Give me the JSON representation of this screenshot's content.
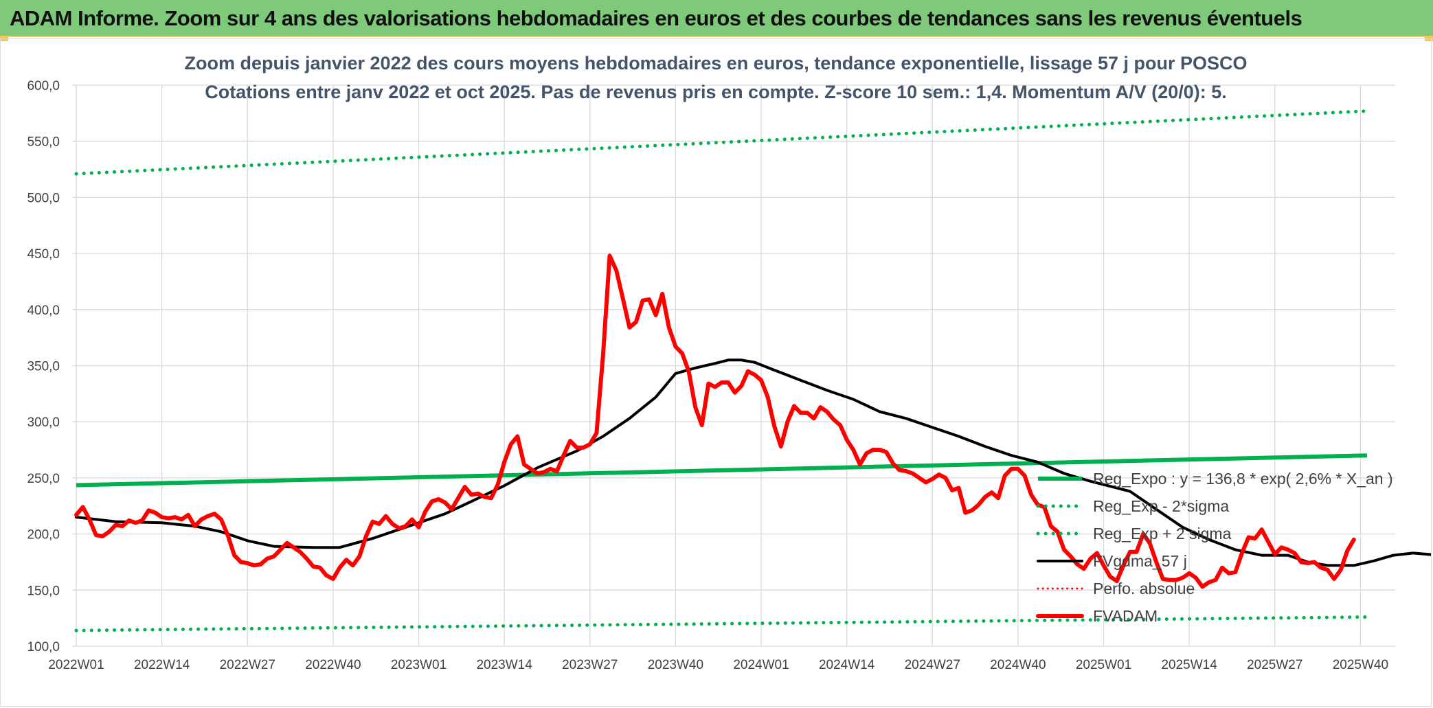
{
  "header": {
    "title": "ADAM Informe. Zoom sur 4 ans des valorisations hebdomadaires en euros et des courbes de tendances sans les revenus éventuels"
  },
  "colors": {
    "header_bg": "#7fc97a",
    "reg_expo": "#00b050",
    "fvadam": "#ff0000",
    "fvgdma": "#000000",
    "grid": "#d9d9d9",
    "title_text": "#44546a"
  },
  "chart_data": {
    "type": "line",
    "title": [
      "Zoom depuis janvier 2022 des cours moyens hebdomadaires en euros, tendance exponentielle, lissage 57 j pour POSCO",
      "Cotations entre janv 2022 et oct 2025. Pas de revenus pris en compte. Z-score 10 sem.: 1,4. Momentum A/V (20/0): 5."
    ],
    "ylim": [
      100,
      600
    ],
    "yticks": [
      "100,0",
      "150,0",
      "200,0",
      "250,0",
      "300,0",
      "350,0",
      "400,0",
      "450,0",
      "500,0",
      "550,0",
      "600,0"
    ],
    "xlabels": [
      "2022W01",
      "2022W14",
      "2022W27",
      "2022W40",
      "2023W01",
      "2023W14",
      "2023W27",
      "2023W40",
      "2024W01",
      "2024W14",
      "2024W27",
      "2024W40",
      "2025W01",
      "2025W14",
      "2025W27",
      "2025W40"
    ],
    "x_unit": "week index (0 = 2022W01, 13 weeks per label)",
    "series": [
      {
        "name": "Reg_Expo : y = 136,8 * exp( 2,6% *  X_an )",
        "style": "solid-thick",
        "points": [
          [
            0,
            243.5
          ],
          [
            196,
            270
          ]
        ]
      },
      {
        "name": "Reg_Exp - 2*sigma",
        "style": "dotted",
        "points": [
          [
            0,
            114
          ],
          [
            196,
            126
          ]
        ]
      },
      {
        "name": "Reg_Exp + 2 sigma",
        "style": "dotted",
        "points": [
          [
            0,
            521
          ],
          [
            196,
            577
          ]
        ]
      },
      {
        "name": "FVgdma_57 j",
        "style": "solid",
        "points": [
          [
            0,
            215
          ],
          [
            6,
            211
          ],
          [
            13,
            210
          ],
          [
            18,
            207
          ],
          [
            22,
            202
          ],
          [
            26,
            194
          ],
          [
            30,
            189
          ],
          [
            36,
            188
          ],
          [
            40,
            188
          ],
          [
            45,
            196
          ],
          [
            50,
            206
          ],
          [
            56,
            218
          ],
          [
            60,
            229
          ],
          [
            65,
            243
          ],
          [
            70,
            259
          ],
          [
            76,
            274
          ],
          [
            80,
            287
          ],
          [
            84,
            303
          ],
          [
            88,
            322
          ],
          [
            91,
            343
          ],
          [
            94,
            348
          ],
          [
            97,
            352
          ],
          [
            99,
            355
          ],
          [
            101,
            355
          ],
          [
            103,
            353
          ],
          [
            106,
            346
          ],
          [
            110,
            337
          ],
          [
            114,
            328
          ],
          [
            118,
            320
          ],
          [
            122,
            309
          ],
          [
            126,
            303
          ],
          [
            130,
            295
          ],
          [
            134,
            287
          ],
          [
            138,
            278
          ],
          [
            142,
            270
          ],
          [
            146,
            264
          ],
          [
            150,
            254
          ],
          [
            154,
            247
          ],
          [
            158,
            241
          ],
          [
            160,
            238
          ],
          [
            164,
            222
          ],
          [
            168,
            206
          ],
          [
            172,
            195
          ],
          [
            176,
            186
          ],
          [
            180,
            181
          ],
          [
            184,
            181
          ],
          [
            187,
            175
          ],
          [
            190,
            172
          ],
          [
            194,
            172
          ],
          [
            197,
            176
          ],
          [
            200,
            181
          ],
          [
            203,
            183
          ],
          [
            207,
            181
          ],
          [
            212,
            181
          ],
          [
            216,
            182
          ],
          [
            220,
            186
          ]
        ]
      },
      {
        "name": "Perfo. absolue",
        "style": "dotted",
        "points": []
      },
      {
        "name": "FVADAM",
        "style": "solid-thick",
        "points": [
          [
            0,
            217
          ],
          [
            1,
            224
          ],
          [
            2,
            213
          ],
          [
            3,
            199
          ],
          [
            4,
            198
          ],
          [
            5,
            202
          ],
          [
            6,
            208
          ],
          [
            7,
            207
          ],
          [
            8,
            212
          ],
          [
            9,
            210
          ],
          [
            10,
            212
          ],
          [
            11,
            221
          ],
          [
            12,
            219
          ],
          [
            13,
            215
          ],
          [
            14,
            214
          ],
          [
            15,
            215
          ],
          [
            16,
            213
          ],
          [
            17,
            217
          ],
          [
            18,
            207
          ],
          [
            19,
            213
          ],
          [
            20,
            216
          ],
          [
            21,
            218
          ],
          [
            22,
            213
          ],
          [
            23,
            199
          ],
          [
            24,
            181
          ],
          [
            25,
            175
          ],
          [
            26,
            174
          ],
          [
            27,
            172
          ],
          [
            28,
            173
          ],
          [
            29,
            178
          ],
          [
            30,
            180
          ],
          [
            31,
            186
          ],
          [
            32,
            192
          ],
          [
            33,
            188
          ],
          [
            34,
            184
          ],
          [
            35,
            178
          ],
          [
            36,
            171
          ],
          [
            37,
            170
          ],
          [
            38,
            163
          ],
          [
            39,
            160
          ],
          [
            40,
            170
          ],
          [
            41,
            177
          ],
          [
            42,
            172
          ],
          [
            43,
            180
          ],
          [
            44,
            198
          ],
          [
            45,
            211
          ],
          [
            46,
            209
          ],
          [
            47,
            216
          ],
          [
            48,
            209
          ],
          [
            49,
            205
          ],
          [
            50,
            207
          ],
          [
            51,
            213
          ],
          [
            52,
            206
          ],
          [
            53,
            220
          ],
          [
            54,
            229
          ],
          [
            55,
            231
          ],
          [
            56,
            228
          ],
          [
            57,
            222
          ],
          [
            58,
            232
          ],
          [
            59,
            242
          ],
          [
            60,
            235
          ],
          [
            61,
            236
          ],
          [
            62,
            233
          ],
          [
            63,
            232
          ],
          [
            64,
            244
          ],
          [
            65,
            264
          ],
          [
            66,
            280
          ],
          [
            67,
            287
          ],
          [
            68,
            262
          ],
          [
            69,
            258
          ],
          [
            70,
            254
          ],
          [
            71,
            255
          ],
          [
            72,
            258
          ],
          [
            73,
            256
          ],
          [
            74,
            270
          ],
          [
            75,
            283
          ],
          [
            76,
            277
          ],
          [
            77,
            277
          ],
          [
            78,
            280
          ],
          [
            79,
            290
          ],
          [
            80,
            360
          ],
          [
            81,
            448
          ],
          [
            82,
            435
          ],
          [
            83,
            410
          ],
          [
            84,
            384
          ],
          [
            85,
            389
          ],
          [
            86,
            408
          ],
          [
            87,
            409
          ],
          [
            88,
            395
          ],
          [
            89,
            414
          ],
          [
            90,
            384
          ],
          [
            91,
            367
          ],
          [
            92,
            361
          ],
          [
            93,
            345
          ],
          [
            94,
            313
          ],
          [
            95,
            297
          ],
          [
            96,
            334
          ],
          [
            97,
            331
          ],
          [
            98,
            335
          ],
          [
            99,
            335
          ],
          [
            100,
            326
          ],
          [
            101,
            332
          ],
          [
            102,
            345
          ],
          [
            103,
            342
          ],
          [
            104,
            337
          ],
          [
            105,
            322
          ],
          [
            106,
            296
          ],
          [
            107,
            278
          ],
          [
            108,
            300
          ],
          [
            109,
            314
          ],
          [
            110,
            308
          ],
          [
            111,
            308
          ],
          [
            112,
            303
          ],
          [
            113,
            313
          ],
          [
            114,
            309
          ],
          [
            115,
            302
          ],
          [
            116,
            297
          ],
          [
            117,
            284
          ],
          [
            118,
            275
          ],
          [
            119,
            262
          ],
          [
            120,
            272
          ],
          [
            121,
            275
          ],
          [
            122,
            275
          ],
          [
            123,
            273
          ],
          [
            124,
            263
          ],
          [
            125,
            257
          ],
          [
            126,
            256
          ],
          [
            127,
            254
          ],
          [
            128,
            250
          ],
          [
            129,
            246
          ],
          [
            130,
            249
          ],
          [
            131,
            253
          ],
          [
            132,
            250
          ],
          [
            133,
            239
          ],
          [
            134,
            241
          ],
          [
            135,
            219
          ],
          [
            136,
            221
          ],
          [
            137,
            226
          ],
          [
            138,
            233
          ],
          [
            139,
            237
          ],
          [
            140,
            232
          ],
          [
            141,
            252
          ],
          [
            142,
            258
          ],
          [
            143,
            258
          ],
          [
            144,
            252
          ],
          [
            145,
            235
          ],
          [
            146,
            226
          ],
          [
            147,
            224
          ],
          [
            148,
            207
          ],
          [
            149,
            202
          ],
          [
            150,
            186
          ],
          [
            151,
            180
          ],
          [
            152,
            173
          ],
          [
            153,
            169
          ],
          [
            154,
            178
          ],
          [
            155,
            183
          ],
          [
            156,
            172
          ],
          [
            157,
            162
          ],
          [
            158,
            158
          ],
          [
            159,
            172
          ],
          [
            160,
            184
          ],
          [
            161,
            184
          ],
          [
            162,
            200
          ],
          [
            163,
            192
          ],
          [
            164,
            175
          ],
          [
            165,
            160
          ],
          [
            166,
            159
          ],
          [
            167,
            159
          ],
          [
            168,
            161
          ],
          [
            169,
            165
          ],
          [
            170,
            161
          ],
          [
            171,
            153
          ],
          [
            172,
            157
          ],
          [
            173,
            159
          ],
          [
            174,
            170
          ],
          [
            175,
            165
          ],
          [
            176,
            166
          ],
          [
            177,
            183
          ],
          [
            178,
            197
          ],
          [
            179,
            196
          ],
          [
            180,
            204
          ],
          [
            181,
            193
          ],
          [
            182,
            182
          ],
          [
            183,
            188
          ],
          [
            184,
            186
          ],
          [
            185,
            183
          ],
          [
            186,
            175
          ],
          [
            187,
            174
          ],
          [
            188,
            175
          ],
          [
            189,
            170
          ],
          [
            190,
            168
          ],
          [
            191,
            160
          ],
          [
            192,
            168
          ],
          [
            193,
            185
          ],
          [
            194,
            195
          ]
        ]
      }
    ],
    "legend": {
      "position": "right",
      "entries": [
        "Reg_Expo : y = 136,8 * exp( 2,6% *  X_an )",
        "Reg_Exp - 2*sigma",
        "Reg_Exp + 2 sigma",
        "FVgdma_57 j",
        "Perfo. absolue",
        "FVADAM"
      ]
    }
  }
}
